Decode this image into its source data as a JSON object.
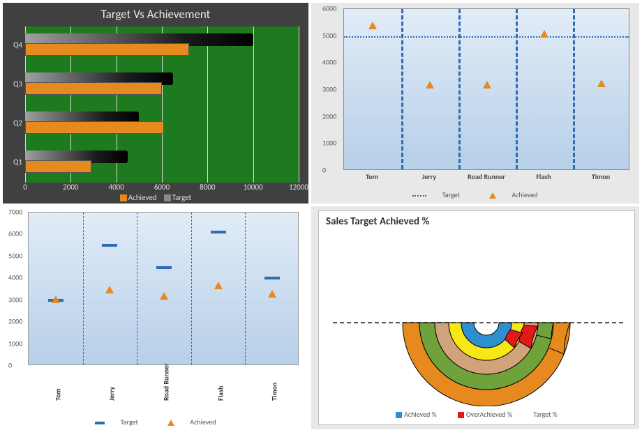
{
  "tl": {
    "title": "Target Vs Achievement",
    "background": "#404040",
    "plot_bg": "#1e7a1e",
    "categories": [
      "Q4",
      "Q3",
      "Q2",
      "Q1"
    ],
    "target": [
      10000,
      6500,
      5000,
      4500
    ],
    "achieved": [
      7200,
      6000,
      6100,
      2900
    ],
    "target_color": "linear-gradient(#a0a0a0,#000)",
    "achieved_color": "#e68a1f",
    "xmax": 12000,
    "xtick_step": 2000,
    "legend": {
      "achieved": "Achieved",
      "target": "Target"
    },
    "gridline_color": "#dcdcdc",
    "title_fontsize": 17
  },
  "tr": {
    "categories": [
      "Tom",
      "Jerry",
      "Road Runner",
      "Flash",
      "Timon"
    ],
    "target_line": 5000,
    "achieved": [
      5400,
      3200,
      3200,
      5100,
      3250
    ],
    "ymax": 6000,
    "ytick_step": 1000,
    "colors": {
      "marker": "#e68a1f",
      "target_line": "#2e6bb3",
      "grid_vline": "#2e6bb3",
      "background_gradient": [
        "#e1ecf7",
        "#b7cfe8"
      ],
      "panel_bg": "#e8e8e8"
    },
    "legend": {
      "target": "Target",
      "achieved": "Achieved"
    }
  },
  "bl": {
    "categories": [
      "Tom",
      "Jerry",
      "Road Runner",
      "Flash",
      "Timon"
    ],
    "target": [
      3000,
      5500,
      4500,
      6100,
      4000
    ],
    "achieved": [
      3050,
      3500,
      3200,
      3700,
      3300
    ],
    "ymax": 7000,
    "ytick_step": 1000,
    "colors": {
      "target_tick": "#2e6bb3",
      "marker": "#e68a1f",
      "background_gradient": [
        "#e1ecf7",
        "#b7cfe8"
      ]
    },
    "legend": {
      "target": "Target",
      "achieved": "Achieved"
    }
  },
  "br": {
    "title": "Sales Target Achieved %",
    "colors": {
      "ring1": "#e68a1f",
      "ring2": "#6fa23b",
      "ring3": "#d0a37a",
      "ring4": "#f7e715",
      "ring5": "#2e8fcf",
      "over": "#e31818",
      "outline": "#000",
      "baseline": "#555"
    },
    "legend": {
      "achieved": "Achieved %",
      "over": "OverAchieved %",
      "target": "Target %"
    },
    "rings": [
      {
        "r_out": 120,
        "r_in": 96,
        "color": "#e68a1f",
        "over_deg": 22
      },
      {
        "r_out": 96,
        "r_in": 74,
        "color": "#6fa23b",
        "over_deg": 14
      },
      {
        "r_out": 74,
        "r_in": 54,
        "color": "#d0a37a",
        "over_deg": 0
      },
      {
        "r_out": 54,
        "r_in": 36,
        "color": "#f7e715",
        "over_deg": 0
      },
      {
        "r_out": 36,
        "r_in": 18,
        "color": "#2e8fcf",
        "over_deg": 0
      }
    ],
    "over_segments": [
      {
        "r_out": 74,
        "r_in": 54,
        "start_deg": 184,
        "end_deg": 210
      },
      {
        "r_out": 54,
        "r_in": 36,
        "start_deg": 196,
        "end_deg": 222
      }
    ]
  }
}
